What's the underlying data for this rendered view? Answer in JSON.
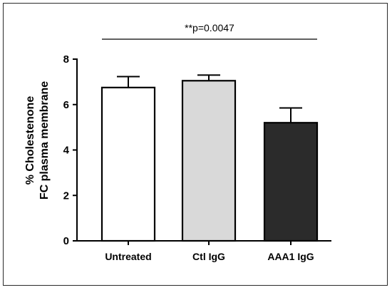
{
  "chart_data": {
    "type": "bar",
    "categories": [
      "Untreated",
      "Ctl IgG",
      "AAA1 IgG"
    ],
    "values": [
      6.75,
      7.05,
      5.2
    ],
    "errors": [
      0.48,
      0.25,
      0.65
    ],
    "colors": [
      "#ffffff",
      "#d9d9d9",
      "#2b2b2b"
    ],
    "ylabel_lines": [
      "% Cholestenone",
      "FC plasma membrane"
    ],
    "ylim": [
      0,
      8
    ],
    "yticks": [
      0,
      2,
      4,
      6,
      8
    ],
    "grid": false,
    "annotation": {
      "text": "**p=0.0047",
      "from_category": 0,
      "to_category": 2
    }
  }
}
